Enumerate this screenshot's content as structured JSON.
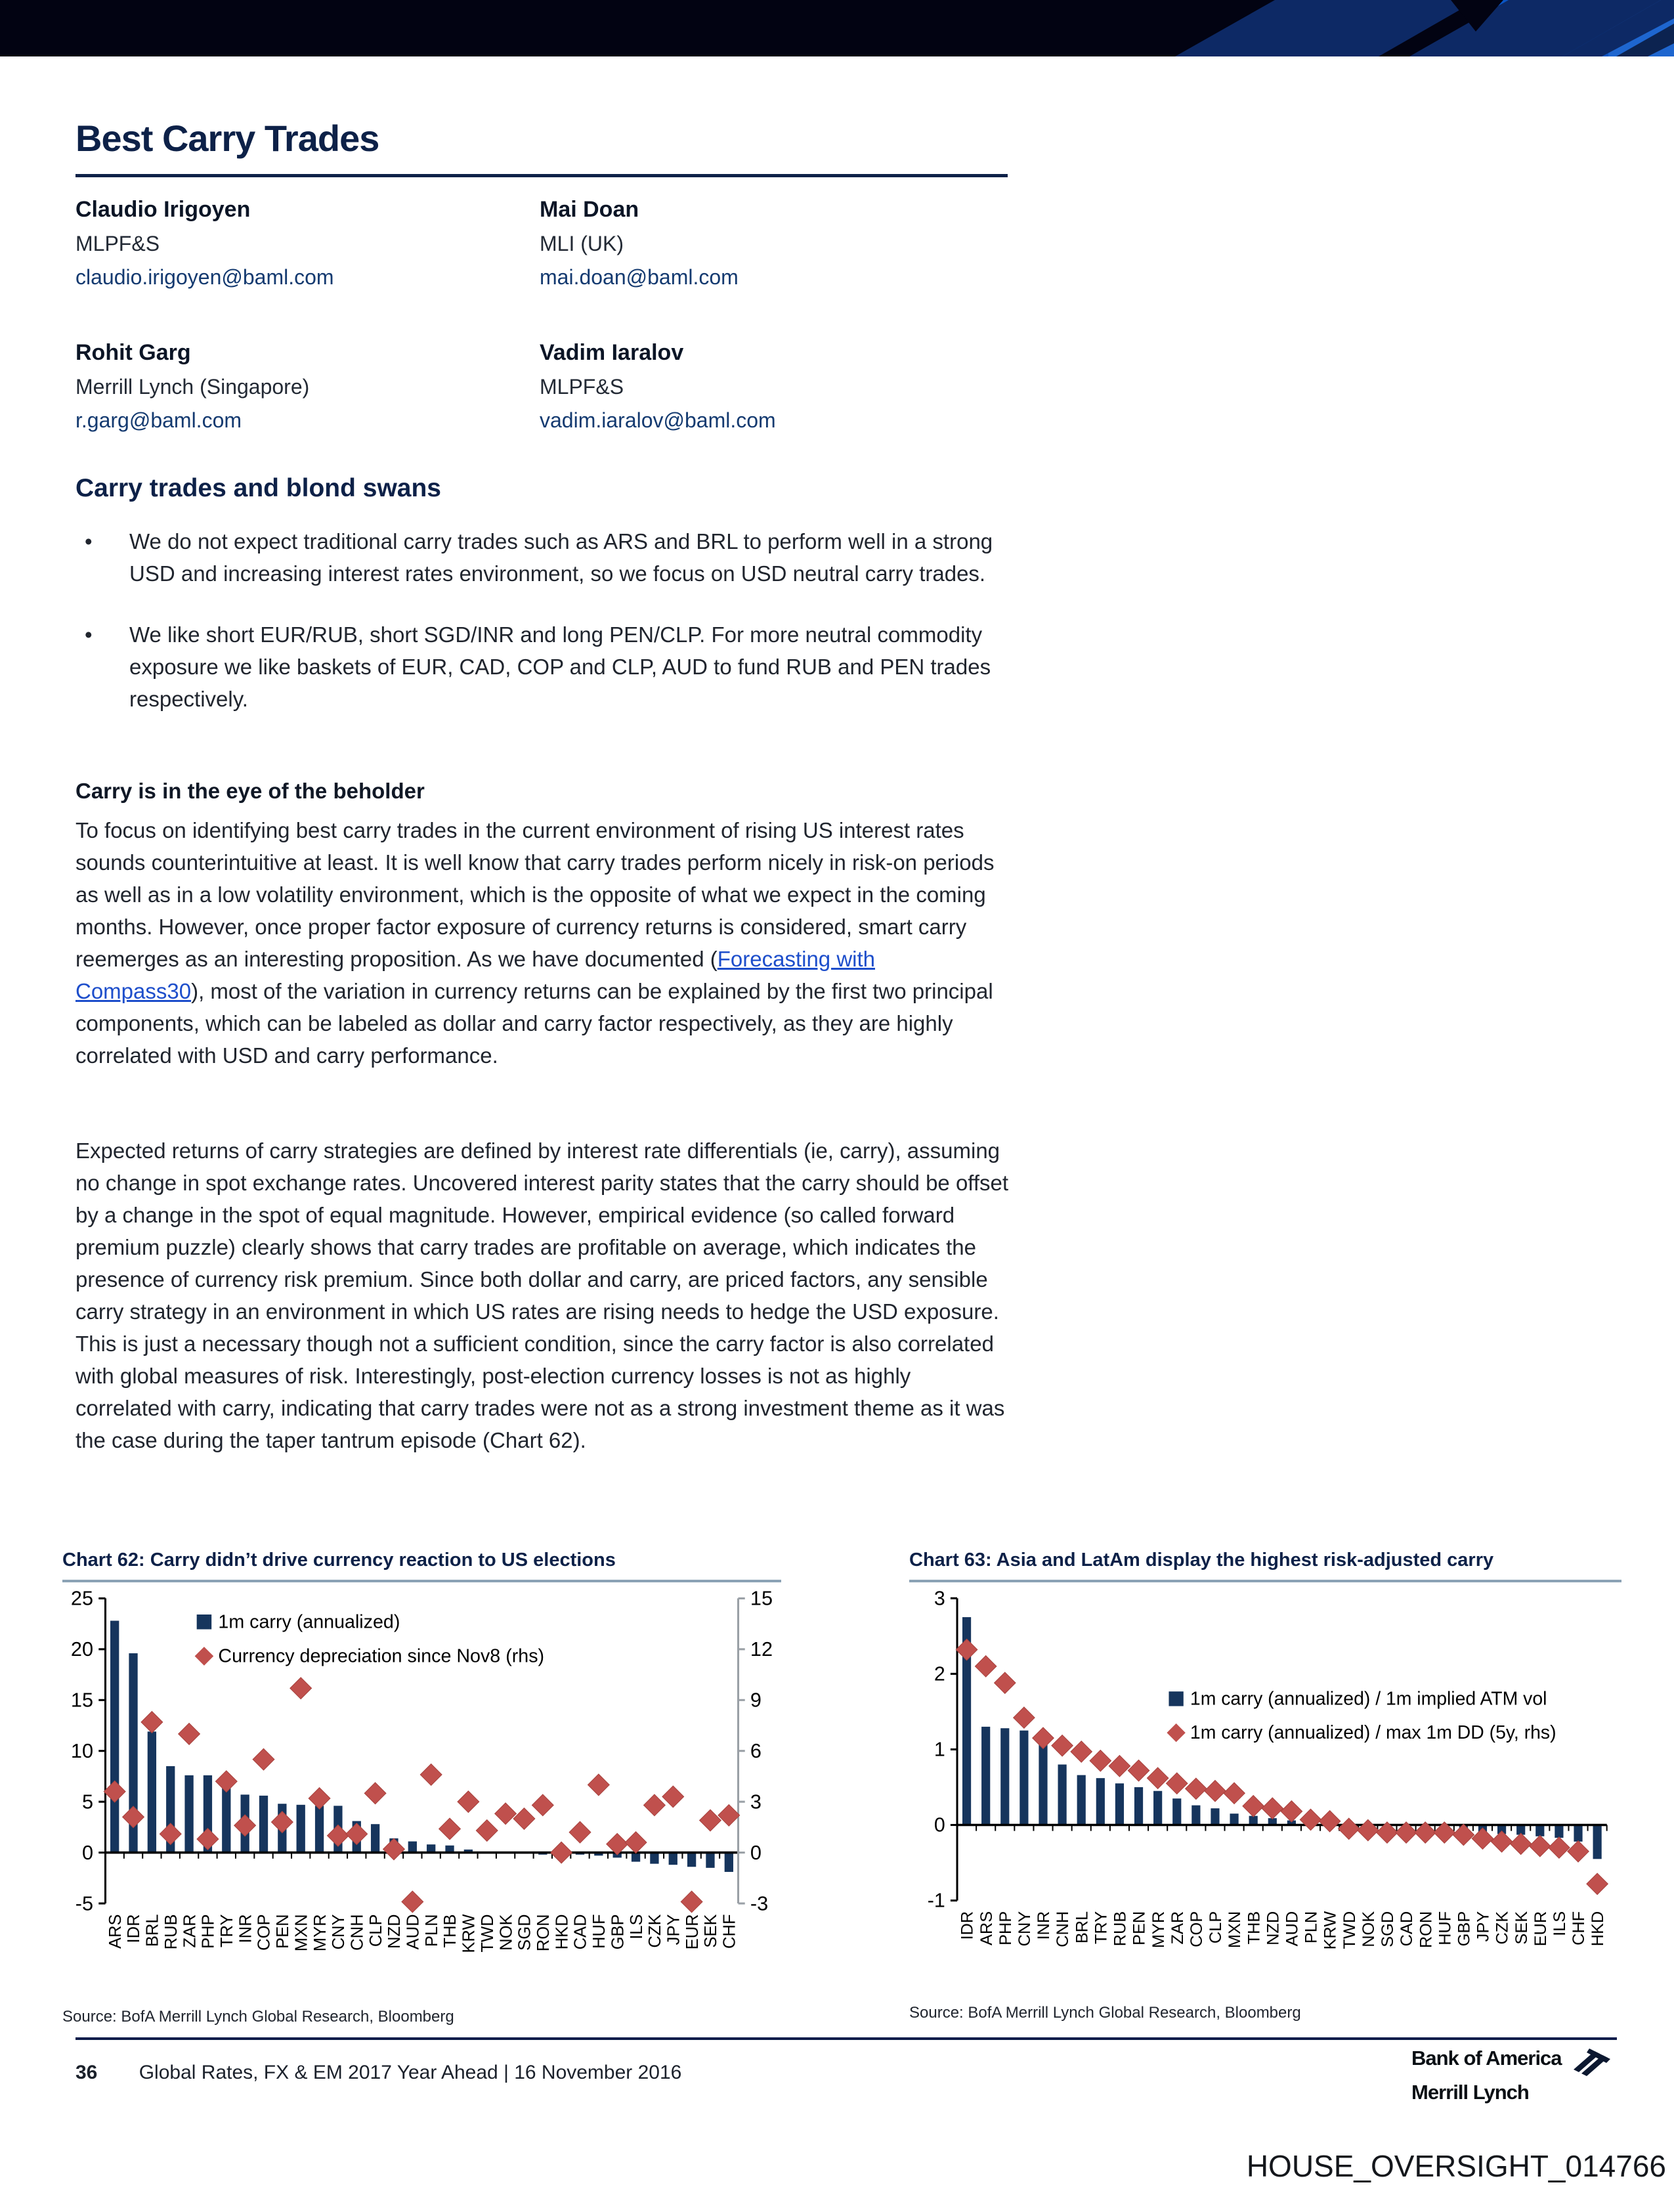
{
  "colors": {
    "accent_navy": "#0d2148",
    "bar_navy": "#16355d",
    "diamond_red": "#c0504d",
    "chart_rule": "#8ba2b5",
    "link_blue": "#1d4ecb",
    "banner_black": "#020312",
    "banner_navy": "#0d2965",
    "banner_blue": "#0a55c4",
    "banner_lightblue": "#1e66cf"
  },
  "header": {
    "title": "Best Carry Trades"
  },
  "authors": [
    {
      "name": "Claudio Irigoyen",
      "firm": "MLPF&S",
      "email": "claudio.irigoyen@baml.com"
    },
    {
      "name": "Mai Doan",
      "firm": "MLI (UK)",
      "email": "mai.doan@baml.com"
    },
    {
      "name": "Rohit Garg",
      "firm": "Merrill Lynch (Singapore)",
      "email": "r.garg@baml.com"
    },
    {
      "name": "Vadim Iaralov",
      "firm": "MLPF&S",
      "email": "vadim.iaralov@baml.com"
    }
  ],
  "sections": {
    "swans": {
      "heading": "Carry trades and blond swans",
      "bullets": [
        "We do not expect traditional carry trades such as ARS and BRL to perform well in a strong USD and increasing interest rates environment, so we focus on USD neutral carry trades.",
        "We like short EUR/RUB, short SGD/INR and long PEN/CLP. For more neutral commodity exposure we like baskets of EUR, CAD, COP and CLP, AUD to fund RUB and PEN trades respectively."
      ]
    },
    "beholder": {
      "heading": "Carry is in the eye of the beholder",
      "para1_pre": "To focus on identifying best carry trades in the current environment of rising US interest rates sounds counterintuitive at least. It is well know that carry trades perform nicely in risk-on periods as well as in a low volatility environment, which is the opposite of what we expect in the coming months. However, once proper factor exposure of currency returns is considered, smart carry reemerges as an interesting proposition. As we have documented (",
      "para1_link": "Forecasting with Compass30",
      "para1_post": "), most of the variation in currency returns can be explained by the first two principal components, which can be labeled as dollar and carry factor respectively, as they are highly correlated with USD and carry performance.",
      "para2": "Expected returns of carry strategies are defined by interest rate differentials (ie, carry), assuming no change in spot exchange rates. Uncovered interest parity states that the carry should be offset by a change in the spot of equal magnitude. However, empirical evidence (so called forward premium puzzle) clearly shows that carry trades are profitable on average, which indicates the presence of currency risk premium. Since both dollar and carry, are priced factors, any sensible carry strategy in an environment in which US rates are rising needs to hedge the USD exposure. This is just a necessary though not a sufficient condition, since the carry factor is also correlated with global measures of risk. Interestingly, post-election currency losses is not as highly correlated with carry, indicating that carry trades were not as a strong investment theme as it was the case during the taper tantrum episode (Chart 62)."
    }
  },
  "chart_data": [
    {
      "type": "bar",
      "title": "Chart 62: Carry didn’t drive currency reaction to US elections",
      "source": "Source:  BofA Merrill Lynch Global Research, Bloomberg",
      "categories": [
        "ARS",
        "IDR",
        "BRL",
        "RUB",
        "ZAR",
        "PHP",
        "TRY",
        "INR",
        "COP",
        "PEN",
        "MXN",
        "MYR",
        "CNY",
        "CNH",
        "CLP",
        "NZD",
        "AUD",
        "PLN",
        "THB",
        "KRW",
        "TWD",
        "NOK",
        "SGD",
        "RON",
        "HKD",
        "CAD",
        "HUF",
        "GBP",
        "ILS",
        "CZK",
        "JPY",
        "EUR",
        "SEK",
        "CHF"
      ],
      "series": [
        {
          "name": "1m carry (annualized)",
          "axis": "left",
          "marker": "square",
          "values": [
            22.8,
            19.6,
            11.9,
            8.5,
            7.6,
            7.6,
            6.4,
            5.7,
            5.6,
            4.8,
            4.7,
            4.6,
            4.6,
            3.1,
            2.8,
            1.4,
            1.1,
            0.8,
            0.7,
            0.3,
            0.1,
            0.05,
            -0.1,
            -0.2,
            -0.15,
            -0.2,
            -0.3,
            -0.5,
            -0.9,
            -1.1,
            -1.2,
            -1.4,
            -1.5,
            -1.9
          ]
        },
        {
          "name": "Currency depreciation since Nov8 (rhs)",
          "axis": "right",
          "marker": "diamond",
          "values": [
            3.6,
            2.1,
            7.7,
            1.1,
            7.0,
            0.8,
            4.2,
            1.6,
            5.5,
            1.8,
            9.7,
            3.2,
            1.0,
            1.1,
            3.5,
            0.2,
            -2.9,
            4.6,
            1.4,
            3.0,
            1.3,
            2.3,
            2.0,
            2.8,
            0.0,
            1.2,
            4.0,
            0.5,
            0.6,
            2.8,
            3.3,
            -2.9,
            1.9,
            2.2
          ]
        }
      ],
      "left_ticks": [
        25,
        20,
        15,
        10,
        5,
        0,
        -5
      ],
      "left_max": 25,
      "left_min": -5,
      "right_ticks": [
        15,
        12,
        9,
        6,
        3,
        0,
        -3
      ],
      "right_max": 15,
      "right_min": -3,
      "grid": false,
      "legend_position": "top-left-inside",
      "legend_x": 200,
      "legend_y": 42
    },
    {
      "type": "bar",
      "title": "Chart 63: Asia and LatAm display the highest risk-adjusted carry",
      "source": "Source:  BofA Merrill Lynch Global Research, Bloomberg",
      "categories": [
        "IDR",
        "ARS",
        "PHP",
        "CNY",
        "INR",
        "CNH",
        "BRL",
        "TRY",
        "RUB",
        "PEN",
        "MYR",
        "ZAR",
        "COP",
        "CLP",
        "MXN",
        "THB",
        "NZD",
        "AUD",
        "PLN",
        "KRW",
        "TWD",
        "NOK",
        "SGD",
        "CAD",
        "RON",
        "HUF",
        "GBP",
        "JPY",
        "CZK",
        "SEK",
        "EUR",
        "ILS",
        "CHF",
        "HKD"
      ],
      "series": [
        {
          "name": "1m carry (annualized) / 1m implied ATM vol",
          "axis": "left",
          "marker": "square",
          "values": [
            2.75,
            1.3,
            1.28,
            1.25,
            1.12,
            0.8,
            0.66,
            0.62,
            0.55,
            0.5,
            0.45,
            0.35,
            0.26,
            0.22,
            0.15,
            0.12,
            0.09,
            0.06,
            0.03,
            0.02,
            -0.02,
            -0.03,
            -0.04,
            -0.04,
            -0.05,
            -0.06,
            -0.07,
            -0.09,
            -0.12,
            -0.13,
            -0.15,
            -0.17,
            -0.22,
            -0.45
          ]
        },
        {
          "name": "1m carry (annualized) / max 1m DD (5y, rhs)",
          "axis": "left",
          "marker": "diamond",
          "values": [
            2.32,
            2.1,
            1.88,
            1.42,
            1.15,
            1.05,
            0.97,
            0.85,
            0.78,
            0.72,
            0.62,
            0.55,
            0.48,
            0.45,
            0.42,
            0.25,
            0.22,
            0.18,
            0.07,
            0.05,
            -0.05,
            -0.07,
            -0.1,
            -0.1,
            -0.1,
            -0.1,
            -0.13,
            -0.18,
            -0.22,
            -0.25,
            -0.28,
            -0.3,
            -0.35,
            -0.78
          ]
        }
      ],
      "left_ticks": [
        3,
        2,
        1,
        0,
        -1
      ],
      "left_max": 3,
      "left_min": -1,
      "grid": false,
      "legend_position": "middle-right-inside",
      "legend_x": 390,
      "legend_y": 158
    }
  ],
  "footer": {
    "page_num": "36",
    "doc_title": "Global Rates, FX & EM 2017 Year Ahead | 16 November 2016",
    "logo_line1": "Bank of America",
    "logo_line2": "Merrill Lynch",
    "watermark": "HOUSE_OVERSIGHT_014766"
  }
}
